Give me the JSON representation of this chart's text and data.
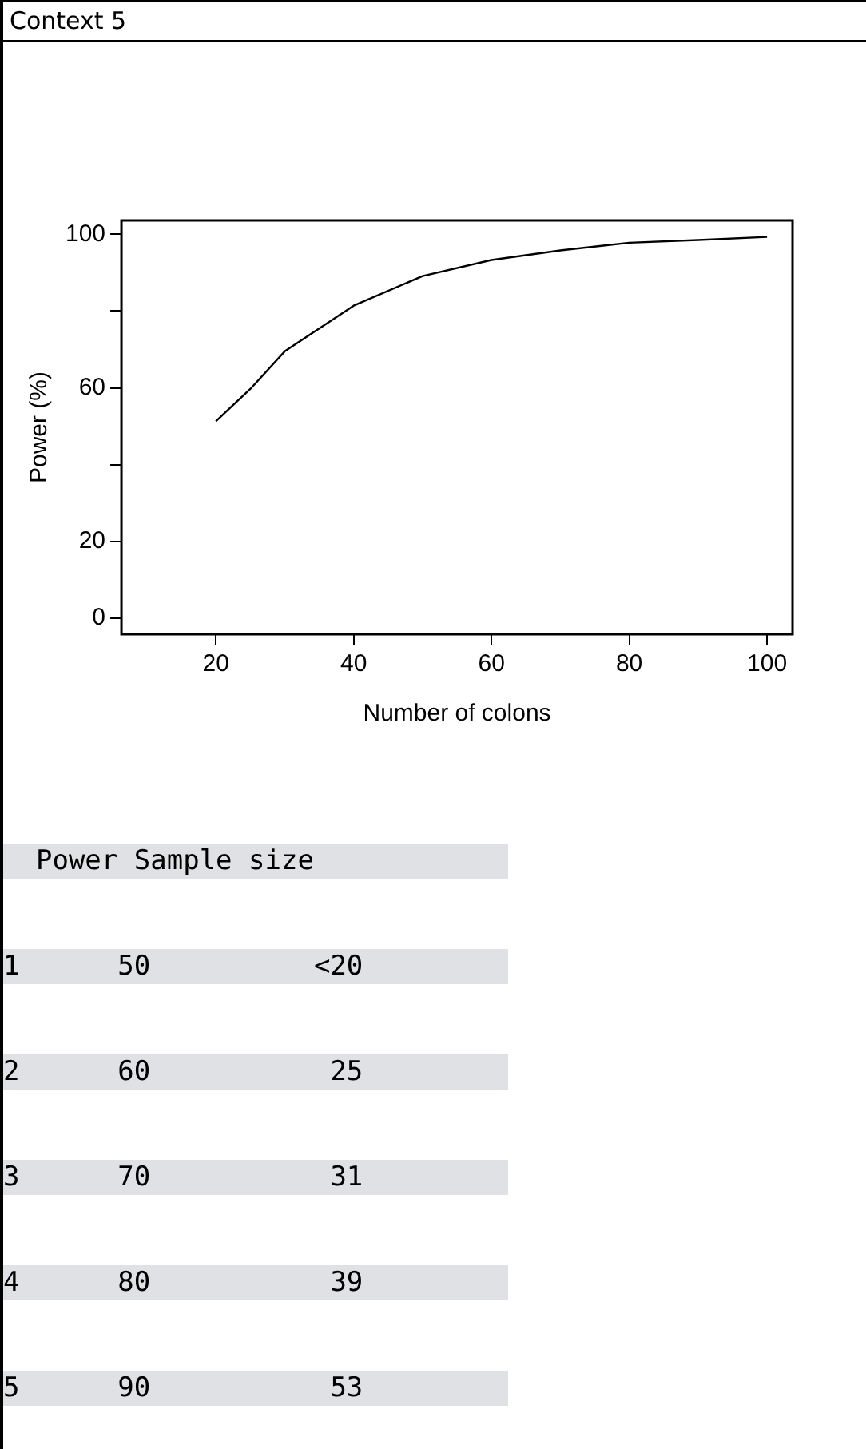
{
  "chart_data": {
    "type": "line",
    "title": "Context 5",
    "xlabel": "Number of colons",
    "ylabel": "Power (%)",
    "x": [
      20,
      25,
      30,
      40,
      50,
      60,
      70,
      80,
      90,
      100
    ],
    "series": [
      {
        "color": "#000000",
        "values": [
          51.3,
          59.7,
          69.5,
          81.4,
          89.1,
          93.3,
          95.8,
          97.8,
          98.5,
          99.3
        ]
      }
    ],
    "xlim": [
      6.3,
      103.7
    ],
    "ylim": [
      -4.2,
      103.6
    ],
    "xticks": [
      20,
      40,
      60,
      80,
      100
    ],
    "yticks": [
      0,
      20,
      {
        "value": 40,
        "label": null
      },
      60,
      {
        "value": 80,
        "label": null
      },
      100
    ],
    "grid": false,
    "legend": false,
    "marker": "none",
    "line_style": "solid",
    "annotations": [
      "  Power Sample size",
      "1      50          <20",
      "2      60           25",
      "3      70           31",
      "4      80           39",
      "5      90           53"
    ]
  }
}
